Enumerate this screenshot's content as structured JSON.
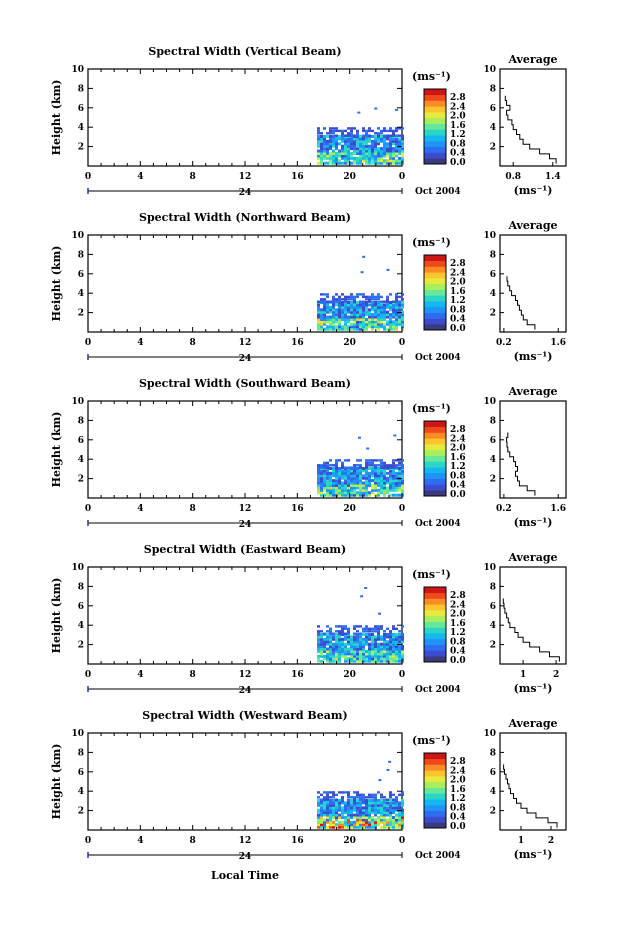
{
  "page": {
    "xlabel": "Local Time"
  },
  "colorbar": {
    "unit": "(ms⁻¹)",
    "ticks": [
      "2.8",
      "2.4",
      "2.0",
      "1.6",
      "1.2",
      "0.8",
      "0.4",
      "0.0"
    ],
    "colors": [
      "#3a3a7c",
      "#3b4ccf",
      "#2f6df0",
      "#1f93f6",
      "#13b8ee",
      "#2ad6c8",
      "#66e89a",
      "#a8ef5e",
      "#e7ea3c",
      "#fbc52d",
      "#fb8b25",
      "#ee4a1c",
      "#cf1616"
    ]
  },
  "chart_data": [
    {
      "type": "heatmap",
      "title": "Spectral Width (Vertical Beam)",
      "ylabel": "Height (km)",
      "xticks": [
        "0",
        "4",
        "8",
        "12",
        "16",
        "20",
        "0"
      ],
      "xlim": [
        0,
        24
      ],
      "ylim": [
        0,
        10
      ],
      "yticks": [
        "2",
        "4",
        "6",
        "8",
        "10"
      ],
      "x_sub": "24",
      "date": "Oct 2004",
      "data_hours": [
        17.5,
        24
      ],
      "profile": {
        "title": "Average",
        "xlabel": "(ms⁻¹)",
        "xticks": [
          "0.8",
          "1.4"
        ],
        "xlim": [
          0.6,
          1.6
        ],
        "yticks": [
          "2",
          "4",
          "6",
          "8",
          "10"
        ],
        "ylim": [
          0,
          10
        ],
        "heights": [
          0.5,
          1.0,
          1.5,
          2.0,
          2.5,
          3.0,
          3.5,
          4.0,
          4.5,
          5.0,
          5.5,
          6.0,
          6.5,
          7.0
        ],
        "values": [
          1.45,
          1.35,
          1.2,
          1.05,
          0.95,
          0.9,
          0.85,
          0.8,
          0.78,
          0.72,
          0.7,
          0.75,
          0.7,
          0.68
        ]
      }
    },
    {
      "type": "heatmap",
      "title": "Spectral Width (Northward Beam)",
      "ylabel": "Height (km)",
      "xticks": [
        "0",
        "4",
        "8",
        "12",
        "16",
        "20",
        "0"
      ],
      "xlim": [
        0,
        24
      ],
      "ylim": [
        0,
        10
      ],
      "yticks": [
        "2",
        "4",
        "6",
        "8",
        "10"
      ],
      "x_sub": "24",
      "date": "Oct 2004",
      "data_hours": [
        17.5,
        24
      ],
      "profile": {
        "title": "Average",
        "xlabel": "(ms⁻¹)",
        "xticks": [
          "0.2",
          "1.6"
        ],
        "xlim": [
          0.1,
          1.8
        ],
        "yticks": [
          "2",
          "4",
          "6",
          "8",
          "10"
        ],
        "ylim": [
          0,
          10
        ],
        "heights": [
          0.5,
          1.0,
          1.5,
          2.0,
          2.5,
          3.0,
          3.5,
          4.0,
          4.5,
          5.0,
          5.5
        ],
        "values": [
          1.0,
          0.8,
          0.7,
          0.65,
          0.6,
          0.55,
          0.5,
          0.4,
          0.35,
          0.3,
          0.28
        ]
      }
    },
    {
      "type": "heatmap",
      "title": "Spectral Width (Southward Beam)",
      "ylabel": "Height (km)",
      "xticks": [
        "0",
        "4",
        "8",
        "12",
        "16",
        "20",
        "0"
      ],
      "xlim": [
        0,
        24
      ],
      "ylim": [
        0,
        10
      ],
      "yticks": [
        "2",
        "4",
        "6",
        "8",
        "10"
      ],
      "x_sub": "24",
      "date": "Oct 2004",
      "data_hours": [
        17.5,
        24
      ],
      "profile": {
        "title": "Average",
        "xlabel": "(ms⁻¹)",
        "xticks": [
          "0.2",
          "1.6"
        ],
        "xlim": [
          0.1,
          1.8
        ],
        "yticks": [
          "2",
          "4",
          "6",
          "8",
          "10"
        ],
        "ylim": [
          0,
          10
        ],
        "heights": [
          0.5,
          1.0,
          1.5,
          2.0,
          2.5,
          3.0,
          3.5,
          4.0,
          4.5,
          5.0,
          5.5,
          6.0,
          6.5
        ],
        "values": [
          1.0,
          0.8,
          0.6,
          0.55,
          0.5,
          0.55,
          0.5,
          0.45,
          0.35,
          0.3,
          0.28,
          0.27,
          0.3
        ]
      }
    },
    {
      "type": "heatmap",
      "title": "Spectral Width (Eastward Beam)",
      "ylabel": "Height (km)",
      "xticks": [
        "0",
        "4",
        "8",
        "12",
        "16",
        "20",
        "0"
      ],
      "xlim": [
        0,
        24
      ],
      "ylim": [
        0,
        10
      ],
      "yticks": [
        "2",
        "4",
        "6",
        "8",
        "10"
      ],
      "x_sub": "24",
      "date": "Oct 2004",
      "data_hours": [
        17.5,
        24
      ],
      "profile": {
        "title": "Average",
        "xlabel": "(ms⁻¹)",
        "xticks": [
          "1",
          "2"
        ],
        "xlim": [
          0.3,
          2.3
        ],
        "yticks": [
          "2",
          "4",
          "6",
          "8",
          "10"
        ],
        "ylim": [
          0,
          10
        ],
        "heights": [
          0.5,
          1.0,
          1.5,
          2.0,
          2.5,
          3.0,
          3.5,
          4.0,
          4.5,
          5.0,
          5.5,
          6.0,
          6.5
        ],
        "values": [
          2.1,
          1.8,
          1.5,
          1.2,
          1.0,
          0.85,
          0.75,
          0.6,
          0.55,
          0.5,
          0.45,
          0.42,
          0.4
        ]
      }
    },
    {
      "type": "heatmap",
      "title": "Spectral Width (Westward Beam)",
      "ylabel": "Height (km)",
      "xticks": [
        "0",
        "4",
        "8",
        "12",
        "16",
        "20",
        "0"
      ],
      "xlim": [
        0,
        24
      ],
      "ylim": [
        0,
        10
      ],
      "yticks": [
        "2",
        "4",
        "6",
        "8",
        "10"
      ],
      "x_sub": "24",
      "date": "Oct 2004",
      "data_hours": [
        17.5,
        24
      ],
      "profile": {
        "title": "Average",
        "xlabel": "(ms⁻¹)",
        "xticks": [
          "1",
          "2"
        ],
        "xlim": [
          0.3,
          2.5
        ],
        "yticks": [
          "2",
          "4",
          "6",
          "8",
          "10"
        ],
        "ylim": [
          0,
          10
        ],
        "heights": [
          0.5,
          1.0,
          1.5,
          2.0,
          2.5,
          3.0,
          3.5,
          4.0,
          4.5,
          5.0,
          5.5,
          6.0,
          6.5
        ],
        "values": [
          2.2,
          1.9,
          1.5,
          1.2,
          1.0,
          0.85,
          0.75,
          0.65,
          0.6,
          0.55,
          0.5,
          0.45,
          0.42
        ]
      }
    }
  ]
}
